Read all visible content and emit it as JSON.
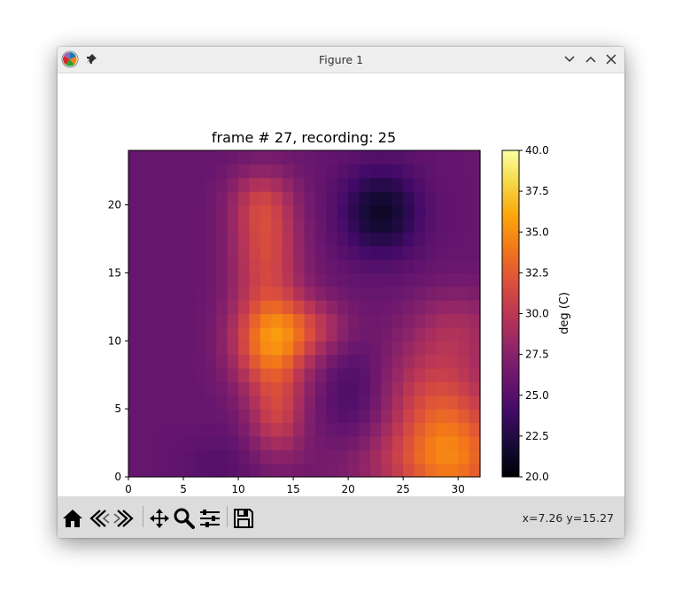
{
  "window": {
    "title": "Figure 1"
  },
  "toolbar": {
    "buttons": [
      "home-icon",
      "back-icon",
      "forward-icon",
      "pan-icon",
      "zoom-icon",
      "configure-subplots-icon",
      "save-icon"
    ],
    "coords_text": "x=7.26 y=15.27"
  },
  "chart_data": {
    "type": "heatmap",
    "title": "frame # 27, recording: 25",
    "xlabel": "",
    "ylabel": "",
    "xlim": [
      0,
      32
    ],
    "ylim": [
      0,
      24
    ],
    "x_ticks": [
      0,
      5,
      10,
      15,
      20,
      25,
      30
    ],
    "y_ticks": [
      0,
      5,
      10,
      15,
      20
    ],
    "grid": false,
    "colormap": "inferno",
    "colorbar": {
      "label": "deg (C)",
      "range": [
        20.0,
        40.0
      ],
      "ticks": [
        "20.0",
        "22.5",
        "25.0",
        "27.5",
        "30.0",
        "32.5",
        "35.0",
        "37.5",
        "40.0"
      ]
    },
    "nx": 32,
    "ny": 24,
    "hot_spots": [
      {
        "x": 13,
        "y": 10,
        "sx": 2.5,
        "sy": 2.5,
        "amp": 8.5
      },
      {
        "x": 12.5,
        "y": 17,
        "sx": 2.2,
        "sy": 3,
        "amp": 5.5
      },
      {
        "x": 13.5,
        "y": 4.5,
        "sx": 1.8,
        "sy": 2.2,
        "amp": 4.5
      },
      {
        "x": 17,
        "y": 11,
        "sx": 2.5,
        "sy": 1.5,
        "amp": 3.0
      },
      {
        "x": 12,
        "y": 20.5,
        "sx": 2.0,
        "sy": 1.5,
        "amp": 2.5
      },
      {
        "x": 30,
        "y": 2,
        "sx": 3.5,
        "sy": 4,
        "amp": 6.0
      },
      {
        "x": 27,
        "y": 6,
        "sx": 3.0,
        "sy": 3,
        "amp": 3.0
      },
      {
        "x": 26,
        "y": 1,
        "sx": 5,
        "sy": 2,
        "amp": 3.0
      },
      {
        "x": 30,
        "y": 11,
        "sx": 3.0,
        "sy": 2,
        "amp": 2.5
      }
    ],
    "cold_spots": [
      {
        "x": 23,
        "y": 19.5,
        "sx": 2.5,
        "sy": 2.3,
        "amp": 4.5
      },
      {
        "x": 20.5,
        "y": 6,
        "sx": 2.0,
        "sy": 3,
        "amp": 1.5
      },
      {
        "x": 8,
        "y": 1,
        "sx": 2.5,
        "sy": 1.5,
        "amp": 0.8
      }
    ],
    "baseline_deg_c": 25.8
  },
  "colors": {
    "toolbar_bg": "#dcdcdc",
    "titlebar_bg": "#eeeeee"
  }
}
